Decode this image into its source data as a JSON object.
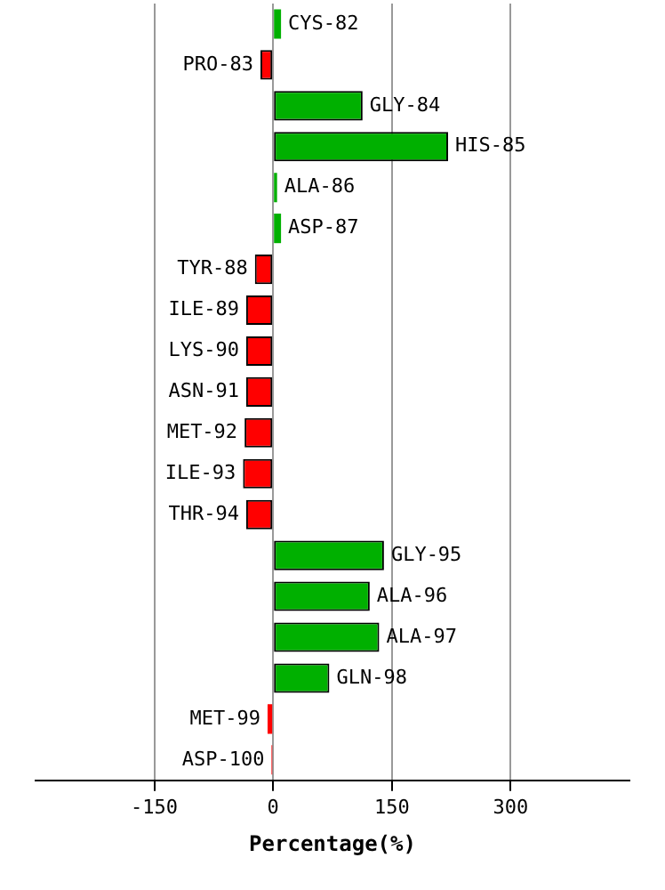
{
  "chart_data": {
    "type": "bar",
    "orientation": "horizontal",
    "xlabel": "Percentage(%)",
    "categories": [
      "CYS-82",
      "PRO-83",
      "GLY-84",
      "HIS-85",
      "ALA-86",
      "ASP-87",
      "TYR-88",
      "ILE-89",
      "LYS-90",
      "ASN-91",
      "MET-92",
      "ILE-93",
      "THR-94",
      "GLY-95",
      "ALA-96",
      "ALA-97",
      "GLN-98",
      "MET-99",
      "ASP-100"
    ],
    "values": [
      10,
      -16,
      113,
      221,
      5,
      10,
      -23,
      -34,
      -34,
      -34,
      -36,
      -38,
      -34,
      140,
      122,
      134,
      71,
      -7,
      -2
    ],
    "colors": [
      "#00b000",
      "#ff0000",
      "#00b000",
      "#00b000",
      "#00b000",
      "#00b000",
      "#ff0000",
      "#ff0000",
      "#ff0000",
      "#ff0000",
      "#ff0000",
      "#ff0000",
      "#ff0000",
      "#00b000",
      "#00b000",
      "#00b000",
      "#00b000",
      "#ff0000",
      "#ff0000"
    ],
    "xlim": [
      -300,
      450
    ],
    "xticks": [
      -150,
      0,
      150,
      300
    ],
    "grid": "x"
  }
}
